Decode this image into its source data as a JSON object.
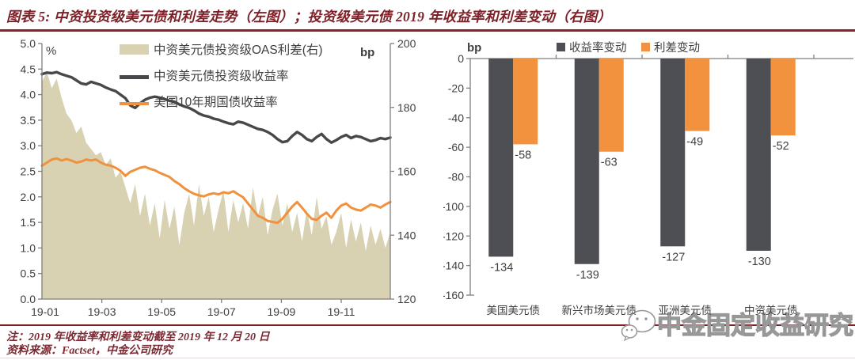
{
  "header": {
    "title": "图表 5: 中资投资级美元债和利差走势（左图）；投资级美元债 2019 年收益率和利差变动（右图）"
  },
  "footer": {
    "note": "注：2019 年收益率和利差变动截至 2019 年 12 月 20 日",
    "source": "资料来源：Factset，中金公司研究"
  },
  "watermark": {
    "icon": "wechat-icon",
    "text": "中金固定收益研究"
  },
  "colors": {
    "accent_red": "#8b2227",
    "axis_gray": "#7f7f7f",
    "label_gray": "#3f3f3f",
    "area_beige": "#d8d2b3",
    "line_dark": "#47484b",
    "line_orange": "#f0913d",
    "bar_dark": "#4d4f55",
    "bar_orange": "#f2923e"
  },
  "chart_data": [
    {
      "type": "line",
      "position": "left",
      "legend_position": "top-center",
      "grid": false,
      "left_axis": {
        "label": "%",
        "min": 0,
        "max": 5,
        "step": 0.5
      },
      "right_axis": {
        "label": "bp",
        "min": 120,
        "max": 200,
        "step": 20
      },
      "x_tick_labels": [
        "19-01",
        "19-03",
        "19-05",
        "19-07",
        "19-09",
        "19-11"
      ],
      "series": [
        {
          "name": "中资美元债投资级OAS利差(右)",
          "type": "area",
          "axis": "right",
          "color": "#d8d2b3",
          "values": [
            188,
            191,
            186,
            189,
            183,
            178,
            176,
            172,
            174,
            169,
            167,
            165,
            166,
            162,
            164,
            158,
            160,
            155,
            150,
            156,
            146,
            153,
            143,
            150,
            139,
            151,
            142,
            149,
            137,
            147,
            153,
            143,
            156,
            146,
            152,
            141,
            148,
            154,
            141,
            151,
            144,
            150,
            142,
            155,
            146,
            152,
            140,
            148,
            153,
            143,
            150,
            141,
            147,
            138,
            148,
            140,
            152,
            142,
            146,
            137,
            141,
            147,
            136,
            145,
            138,
            144,
            135,
            143,
            137,
            142,
            136,
            141
          ]
        },
        {
          "name": "中资美元债投资级收益率",
          "type": "line",
          "axis": "left",
          "color": "#47484b",
          "values": [
            4.4,
            4.43,
            4.42,
            4.44,
            4.4,
            4.37,
            4.34,
            4.28,
            4.22,
            4.2,
            4.25,
            4.22,
            4.19,
            4.14,
            4.1,
            4.07,
            4.0,
            3.93,
            3.79,
            3.74,
            3.83,
            3.9,
            3.94,
            3.96,
            3.94,
            3.91,
            3.88,
            3.86,
            3.81,
            3.77,
            3.74,
            3.69,
            3.63,
            3.59,
            3.57,
            3.53,
            3.51,
            3.47,
            3.44,
            3.42,
            3.47,
            3.45,
            3.41,
            3.37,
            3.33,
            3.31,
            3.27,
            3.21,
            3.13,
            3.07,
            3.09,
            3.19,
            3.27,
            3.21,
            3.13,
            3.09,
            3.17,
            3.23,
            3.13,
            3.06,
            3.11,
            3.17,
            3.21,
            3.15,
            3.19,
            3.17,
            3.13,
            3.09,
            3.11,
            3.15,
            3.13,
            3.16
          ]
        },
        {
          "name": "美国10年期国债收益率",
          "type": "line",
          "axis": "left",
          "color": "#f0913d",
          "values": [
            2.61,
            2.67,
            2.73,
            2.75,
            2.71,
            2.74,
            2.71,
            2.67,
            2.69,
            2.73,
            2.71,
            2.73,
            2.67,
            2.63,
            2.61,
            2.57,
            2.51,
            2.41,
            2.49,
            2.53,
            2.57,
            2.59,
            2.55,
            2.52,
            2.47,
            2.43,
            2.39,
            2.31,
            2.25,
            2.17,
            2.11,
            2.06,
            2.03,
            2.01,
            2.05,
            2.07,
            2.05,
            2.09,
            2.07,
            2.11,
            2.05,
            1.99,
            1.87,
            1.75,
            1.63,
            1.59,
            1.53,
            1.51,
            1.49,
            1.57,
            1.69,
            1.81,
            1.9,
            1.79,
            1.67,
            1.57,
            1.55,
            1.63,
            1.69,
            1.59,
            1.73,
            1.83,
            1.87,
            1.79,
            1.75,
            1.73,
            1.79,
            1.85,
            1.83,
            1.79,
            1.85,
            1.9
          ]
        }
      ]
    },
    {
      "type": "bar",
      "position": "right",
      "legend_position": "top-center",
      "grid": false,
      "data_labels": true,
      "y_axis": {
        "label": "bp",
        "min": -160,
        "max": 0,
        "step": 20
      },
      "categories": [
        "美国美元债",
        "新兴市场美元债",
        "亚洲美元债",
        "中资美元债"
      ],
      "series": [
        {
          "name": "收益率变动",
          "color": "#4d4f55",
          "values": [
            -134,
            -139,
            -127,
            -130
          ]
        },
        {
          "name": "利差变动",
          "color": "#f2923e",
          "values": [
            -58,
            -63,
            -49,
            -52
          ]
        }
      ]
    }
  ]
}
